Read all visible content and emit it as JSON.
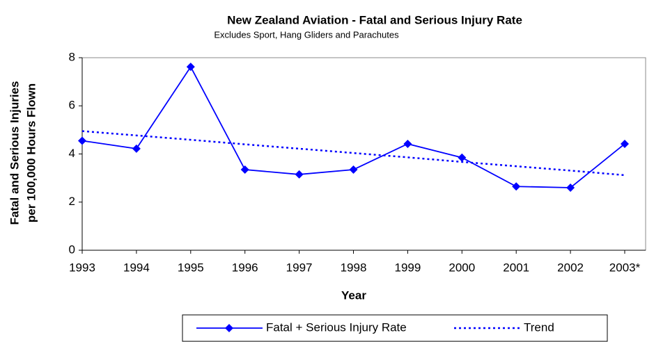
{
  "chart_data": {
    "type": "line",
    "title": "New Zealand Aviation - Fatal and Serious Injury Rate",
    "subtitle": "Excludes Sport, Hang Gliders and Parachutes",
    "xlabel": "Year",
    "ylabel": [
      "Fatal and Serious Injuries",
      "per 100,000 Hours Flown"
    ],
    "categories": [
      "1993",
      "1994",
      "1995",
      "1996",
      "1997",
      "1998",
      "1999",
      "2000",
      "2001",
      "2002",
      "2003*"
    ],
    "series": [
      {
        "name": "Fatal + Serious Injury Rate",
        "color": "#0000ff",
        "style": "solid",
        "marker": "diamond",
        "values": [
          4.55,
          4.22,
          7.62,
          3.35,
          3.15,
          3.35,
          4.42,
          3.85,
          2.65,
          2.6,
          4.42
        ]
      },
      {
        "name": "Trend",
        "color": "#0000ff",
        "style": "dotted",
        "values": [
          4.95,
          4.77,
          4.59,
          4.4,
          4.22,
          4.04,
          3.86,
          3.67,
          3.49,
          3.31,
          3.12
        ]
      }
    ],
    "ylim": [
      0,
      8
    ],
    "yticks": [
      0,
      2,
      4,
      6,
      8
    ],
    "grid": false,
    "legend": "bottom"
  }
}
